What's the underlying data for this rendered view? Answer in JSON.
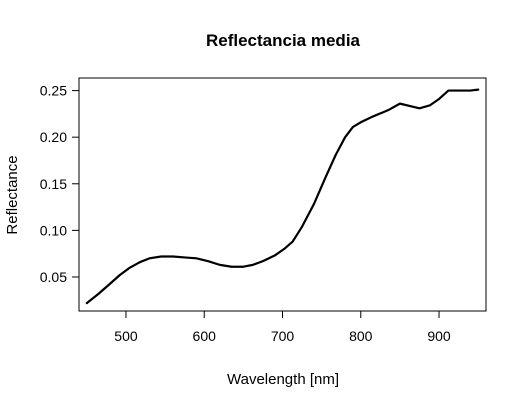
{
  "chart_data": {
    "type": "line",
    "title": "Reflectancia media",
    "xlabel": "Wavelength [nm]",
    "ylabel": "Reflectance",
    "xlim": [
      440,
      960
    ],
    "ylim": [
      0.0135,
      0.2635
    ],
    "x_ticks": [
      500,
      600,
      700,
      800,
      900
    ],
    "y_ticks": [
      0.05,
      0.1,
      0.15,
      0.2,
      0.25
    ],
    "x_tick_labels": [
      "500",
      "600",
      "700",
      "800",
      "900"
    ],
    "y_tick_labels": [
      "0.05",
      "0.10",
      "0.15",
      "0.20",
      "0.25"
    ],
    "grid": false,
    "line_color": "#000000",
    "series": [
      {
        "x": [
          450,
          465,
          480,
          492,
          505,
          518,
          530,
          545,
          560,
          575,
          590,
          605,
          620,
          635,
          650,
          662,
          675,
          690,
          702,
          713,
          725,
          740,
          755,
          768,
          780,
          790,
          800,
          815,
          835,
          850,
          865,
          875,
          888,
          900,
          912,
          928,
          940,
          950
        ],
        "y": [
          0.022,
          0.032,
          0.043,
          0.052,
          0.06,
          0.066,
          0.07,
          0.072,
          0.072,
          0.071,
          0.07,
          0.067,
          0.063,
          0.061,
          0.061,
          0.063,
          0.067,
          0.073,
          0.08,
          0.088,
          0.104,
          0.128,
          0.157,
          0.181,
          0.2,
          0.211,
          0.216,
          0.222,
          0.229,
          0.236,
          0.233,
          0.231,
          0.234,
          0.241,
          0.25,
          0.25,
          0.25,
          0.251
        ]
      }
    ]
  }
}
